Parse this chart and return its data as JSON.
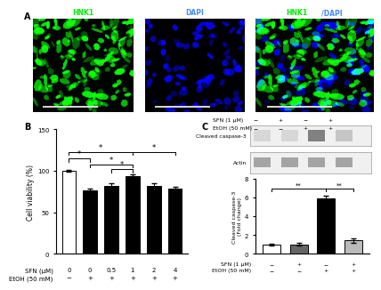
{
  "panel_A": {
    "label": "A",
    "titles": [
      "HNK1",
      "DAPI",
      "HNK1/DAPI"
    ],
    "title_colors": [
      [
        "#00ee00"
      ],
      [
        "#4444ff"
      ],
      [
        "#00ee00",
        "#4444ff"
      ]
    ]
  },
  "panel_B": {
    "label": "B",
    "categories": [
      "0",
      "0",
      "0.5",
      "1",
      "2",
      "4"
    ],
    "values": [
      100,
      76,
      82,
      93,
      82,
      79
    ],
    "errors": [
      1.0,
      2.5,
      2.5,
      2.5,
      2.5,
      2.0
    ],
    "bar_colors": [
      "white",
      "black",
      "black",
      "black",
      "black",
      "black"
    ],
    "bar_edge_colors": [
      "black",
      "black",
      "black",
      "black",
      "black",
      "black"
    ],
    "ylabel": "Cell viability (%)",
    "ylim": [
      0,
      150
    ],
    "yticks": [
      0,
      50,
      100,
      150
    ],
    "xlabel_row1": "SFN (μM)",
    "xlabel_row2": "EtOH (50 mM)",
    "xtick_row1": [
      "0",
      "0",
      "0.5",
      "1",
      "2",
      "4"
    ],
    "xtick_row2": [
      "−",
      "+",
      "+",
      "+",
      "+",
      "+"
    ],
    "sig_lines": [
      [
        0,
        1,
        115,
        "*"
      ],
      [
        0,
        3,
        123,
        "*"
      ],
      [
        1,
        3,
        108,
        "*"
      ],
      [
        2,
        3,
        102,
        "*"
      ],
      [
        3,
        5,
        123,
        "*"
      ]
    ]
  },
  "panel_C": {
    "label": "C",
    "sfn_row": [
      "SFN (1 μM)",
      "−",
      "+",
      "−",
      "+"
    ],
    "etoh_row": [
      "EtOH (50 mM)",
      "−",
      "−",
      "+",
      "+"
    ],
    "wb_labels": [
      "Cleaved caspase-3",
      "Actin"
    ],
    "wb_cc3_alphas": [
      0.18,
      0.18,
      0.8,
      0.3
    ],
    "wb_actin_alphas": [
      0.55,
      0.55,
      0.55,
      0.55
    ],
    "bar_values": [
      1.0,
      1.0,
      5.9,
      1.4
    ],
    "bar_errors": [
      0.1,
      0.15,
      0.25,
      0.2
    ],
    "bar_colors": [
      "white",
      "#666666",
      "black",
      "#bbbbbb"
    ],
    "bar_edge_colors": [
      "black",
      "black",
      "black",
      "black"
    ],
    "ylabel": "Cleaved caspase-3\n(Fold change)",
    "ylim": [
      0,
      8
    ],
    "yticks": [
      0,
      2,
      4,
      6,
      8
    ],
    "xtick_row1": [
      "−",
      "+",
      "−",
      "+"
    ],
    "xtick_row2": [
      "−",
      "−",
      "+",
      "+"
    ],
    "xlabel_row1": "SFN (1 μM)",
    "xlabel_row2": "EtOH (50 mM)",
    "sig_lines": [
      [
        0,
        2,
        7.0,
        "**"
      ],
      [
        2,
        3,
        7.0,
        "**"
      ]
    ]
  }
}
